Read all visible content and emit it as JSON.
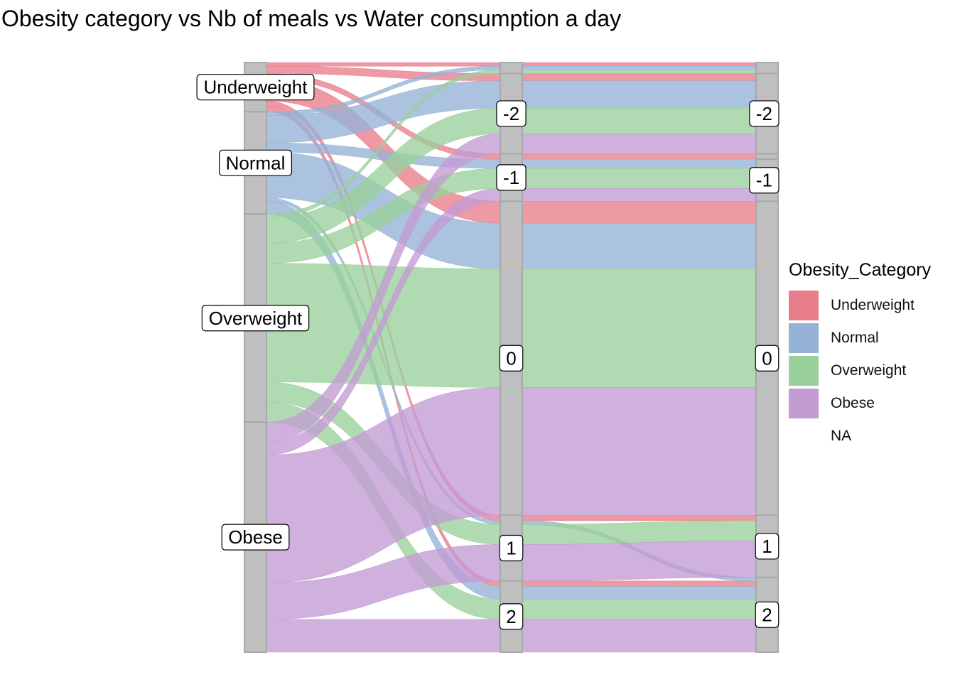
{
  "chart_data": {
    "type": "alluvial",
    "title": "Obesity category vs Nb of meals vs Water consumption a day",
    "axes": [
      {
        "name": "",
        "strata": [
          "Underweight",
          "Normal",
          "Overweight",
          "Obese"
        ]
      },
      {
        "name": "",
        "strata": [
          "NA",
          "-2",
          "-1",
          "0",
          "1",
          "2"
        ]
      },
      {
        "name": "",
        "strata": [
          "NA",
          "-2",
          "NA2",
          "-1",
          "0",
          "1",
          "2"
        ]
      }
    ],
    "axis_labels": [
      [
        "Underweight",
        "Normal",
        "Overweight",
        "Obese"
      ],
      [
        "",
        "-2",
        "-1",
        "0",
        "1",
        "2"
      ],
      [
        "",
        "-2",
        "",
        "-1",
        "0",
        "1",
        "2"
      ]
    ],
    "categories": [
      "Underweight",
      "Normal",
      "Overweight",
      "Obese"
    ],
    "flows": [
      {
        "cat": "Underweight",
        "s2": "NA",
        "s3": "NA",
        "value": 4
      },
      {
        "cat": "Underweight",
        "s2": "-2",
        "s3": "-2",
        "value": 8
      },
      {
        "cat": "Underweight",
        "s2": "-1",
        "s3": "NA2",
        "value": 6
      },
      {
        "cat": "Underweight",
        "s2": "0",
        "s3": "0",
        "value": 24
      },
      {
        "cat": "Underweight",
        "s2": "1",
        "s3": "1",
        "value": 6
      },
      {
        "cat": "Underweight",
        "s2": "2",
        "s3": "2",
        "value": 6
      },
      {
        "cat": "Normal",
        "s2": "NA",
        "s3": "NA",
        "value": 4
      },
      {
        "cat": "Normal",
        "s2": "-2",
        "s3": "-2",
        "value": 30
      },
      {
        "cat": "Normal",
        "s2": "-1",
        "s3": "-1",
        "value": 10
      },
      {
        "cat": "Normal",
        "s2": "0",
        "s3": "0",
        "value": 50
      },
      {
        "cat": "Normal",
        "s2": "1",
        "s3": "2",
        "value": 4
      },
      {
        "cat": "Normal",
        "s2": "2",
        "s3": "2",
        "value": 14
      },
      {
        "cat": "Overweight",
        "s2": "NA",
        "s3": "NA",
        "value": 4
      },
      {
        "cat": "Overweight",
        "s2": "-2",
        "s3": "-2",
        "value": 28
      },
      {
        "cat": "Overweight",
        "s2": "-1",
        "s3": "-1",
        "value": 22
      },
      {
        "cat": "Overweight",
        "s2": "0",
        "s3": "0",
        "value": 130
      },
      {
        "cat": "Overweight",
        "s2": "1",
        "s3": "1",
        "value": 22
      },
      {
        "cat": "Overweight",
        "s2": "2",
        "s3": "2",
        "value": 22
      },
      {
        "cat": "Obese",
        "s2": "-2",
        "s3": "-2",
        "value": 22
      },
      {
        "cat": "Obese",
        "s2": "-1",
        "s3": "-1",
        "value": 14
      },
      {
        "cat": "Obese",
        "s2": "0",
        "s3": "0",
        "value": 140
      },
      {
        "cat": "Obese",
        "s2": "1",
        "s3": "1",
        "value": 40
      },
      {
        "cat": "Obese",
        "s2": "2",
        "s3": "2",
        "value": 36
      }
    ],
    "legend": {
      "title": "Obesity_Category",
      "position": "right",
      "entries": [
        {
          "label": "Underweight",
          "color": "#e87e8a"
        },
        {
          "label": "Normal",
          "color": "#93b2d6"
        },
        {
          "label": "Overweight",
          "color": "#9ad09b"
        },
        {
          "label": "Obese",
          "color": "#c39bd3"
        },
        {
          "label": "NA",
          "color": ""
        }
      ]
    },
    "grid": false,
    "stratum_color": "#bfbfbf"
  }
}
